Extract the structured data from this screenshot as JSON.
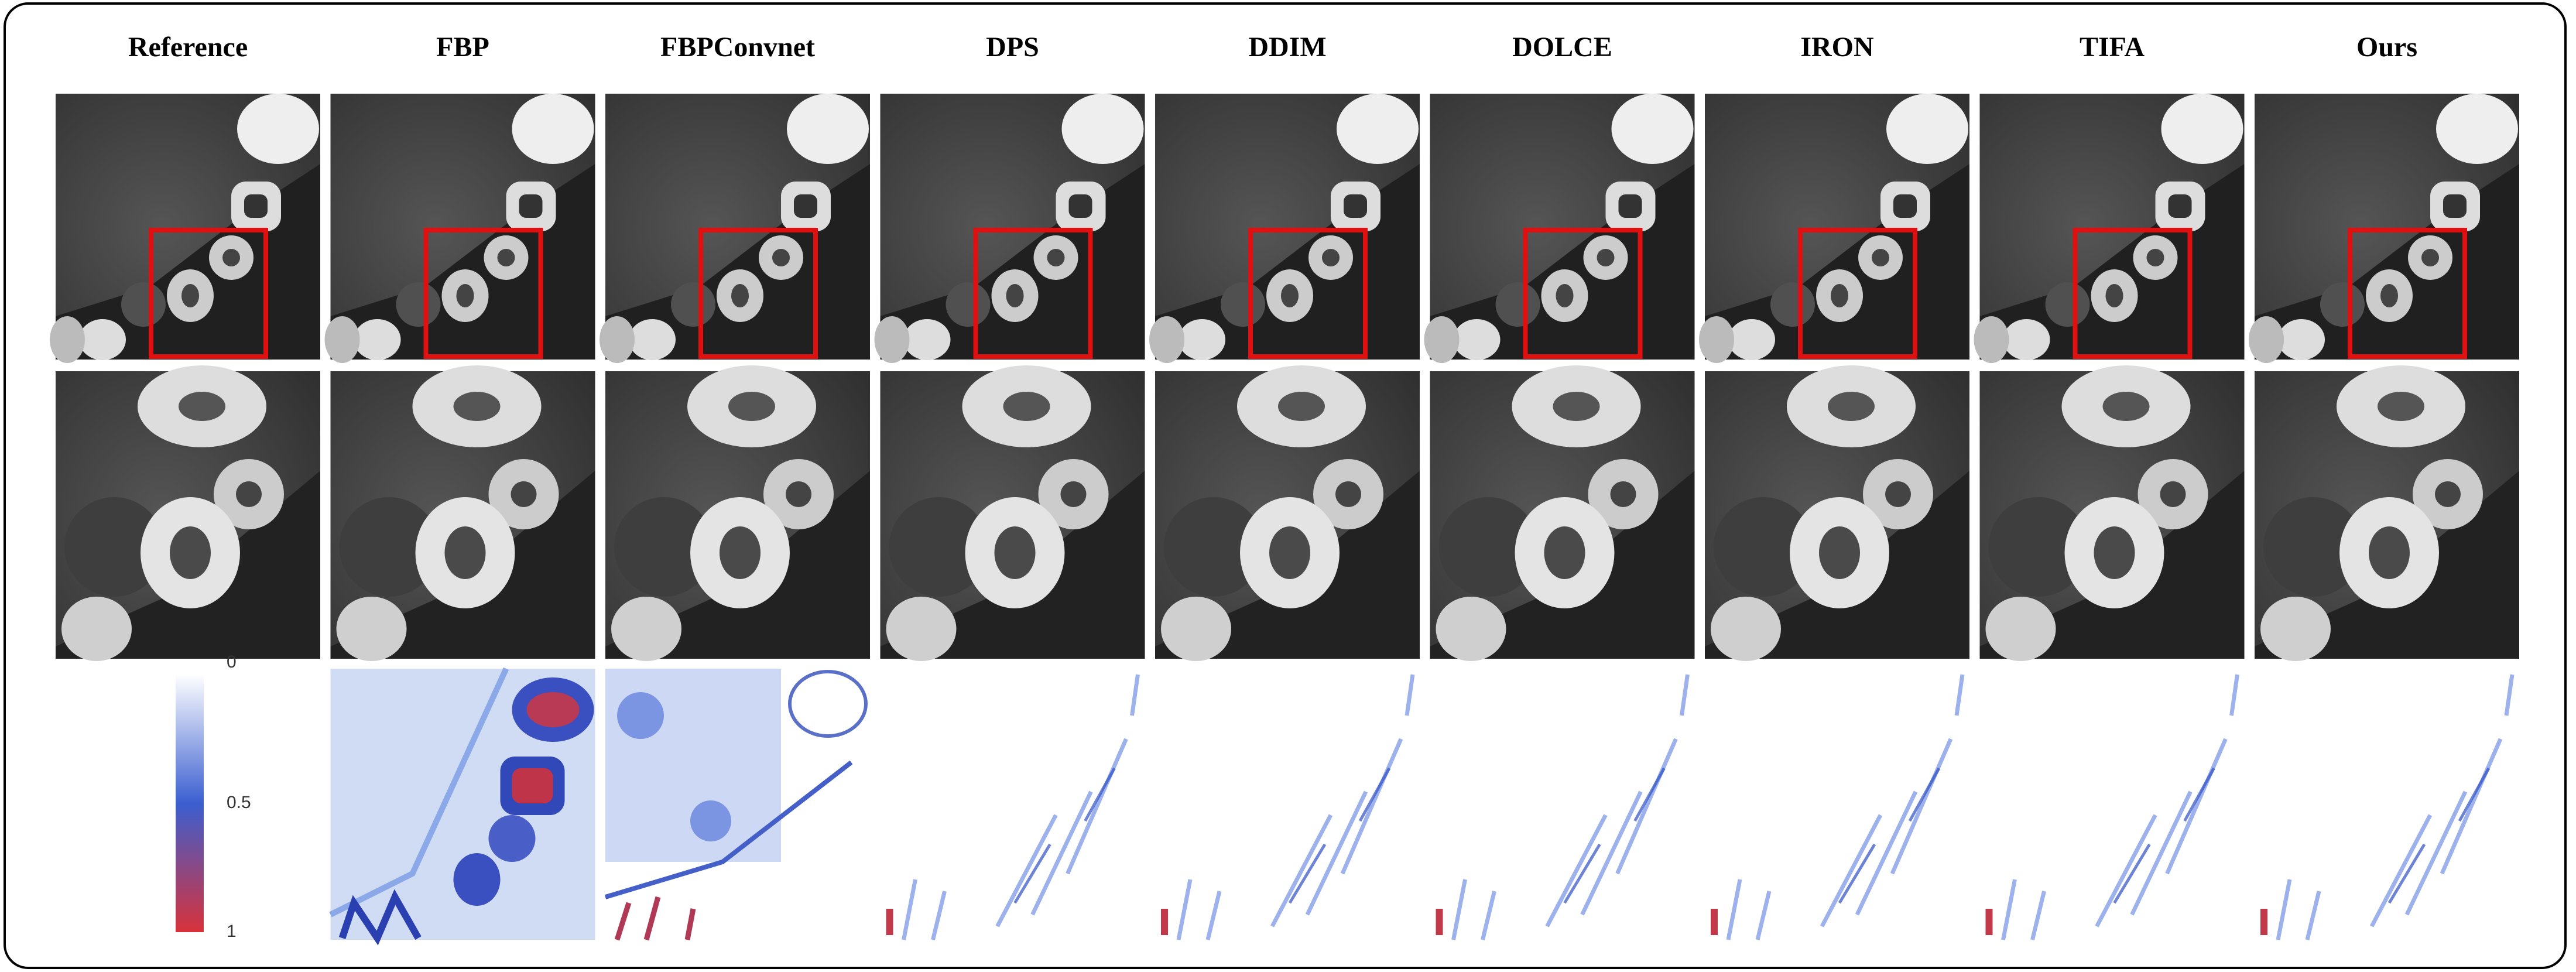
{
  "columns": [
    "Reference",
    "FBP",
    "FBPConvnet",
    "DPS",
    "DDIM",
    "DOLCE",
    "IRON",
    "TIFA",
    "Ours"
  ],
  "colorbar": {
    "ticks": [
      0,
      0.5,
      1
    ]
  }
}
